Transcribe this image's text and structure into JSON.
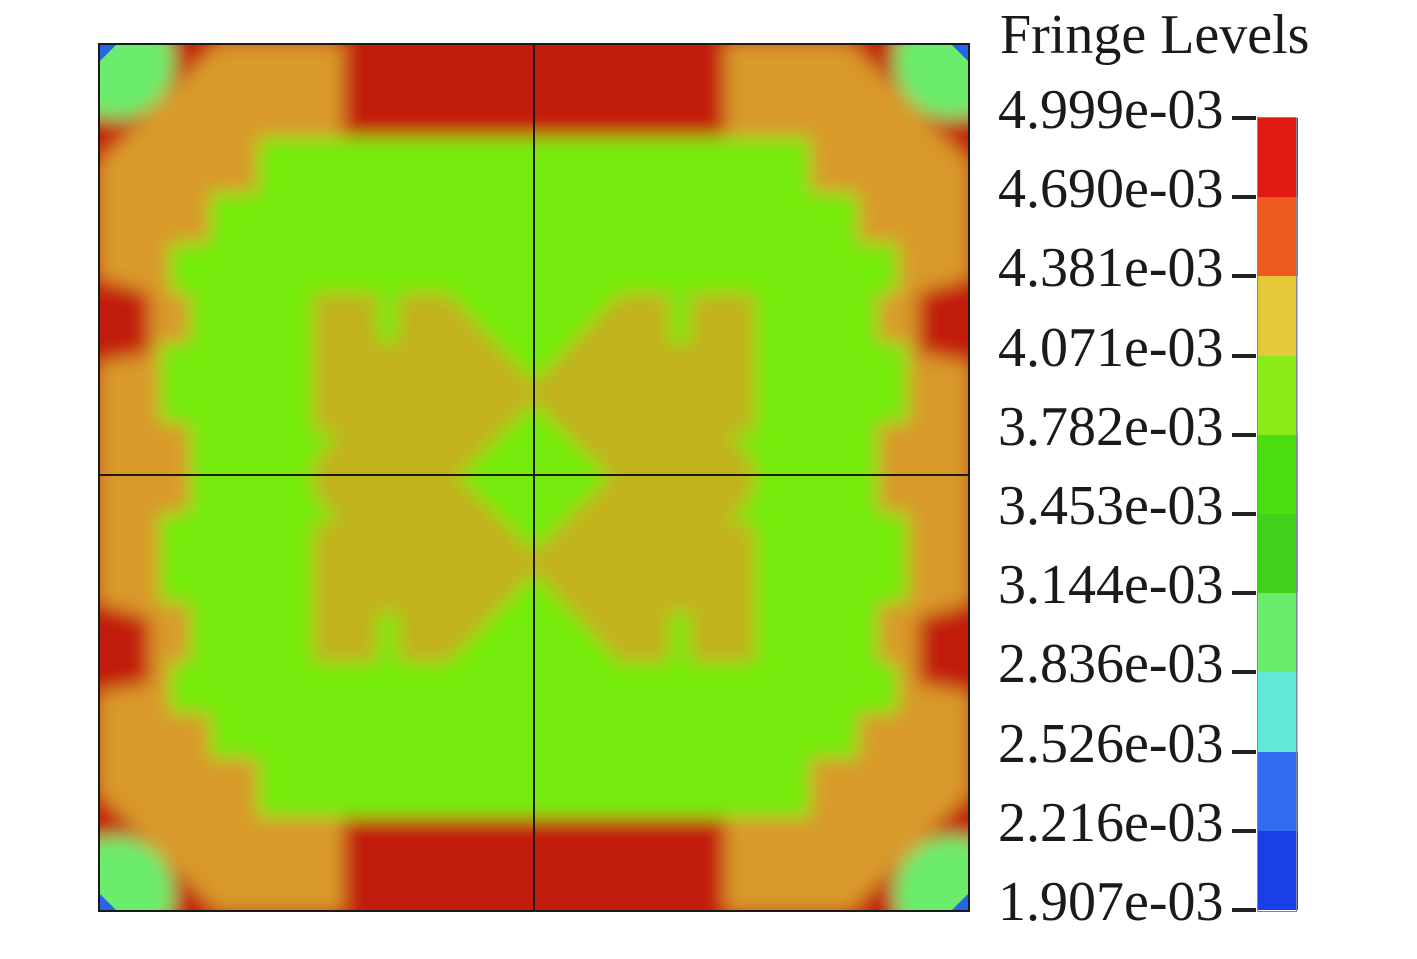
{
  "legend": {
    "title": "Fringe Levels",
    "levels": [
      "4.999e-03",
      "4.690e-03",
      "4.381e-03",
      "4.071e-03",
      "3.782e-03",
      "3.453e-03",
      "3.144e-03",
      "2.836e-03",
      "2.526e-03",
      "2.216e-03",
      "1.907e-03"
    ],
    "band_colors": [
      "#e11a14",
      "#ee5a20",
      "#e6c93a",
      "#8cec1a",
      "#4ade10",
      "#40d21a",
      "#6cec6c",
      "#60e8d8",
      "#2f6cf0",
      "#1a3ee8"
    ]
  },
  "plot": {
    "field_colors": {
      "high": "#c21e0a",
      "upper_mid": "#d99a2c",
      "mid": "#c2b21c",
      "low_mid": "#74ec0c",
      "corner_low": "#2864e8"
    },
    "divider_color": "#1a1a1a"
  }
}
